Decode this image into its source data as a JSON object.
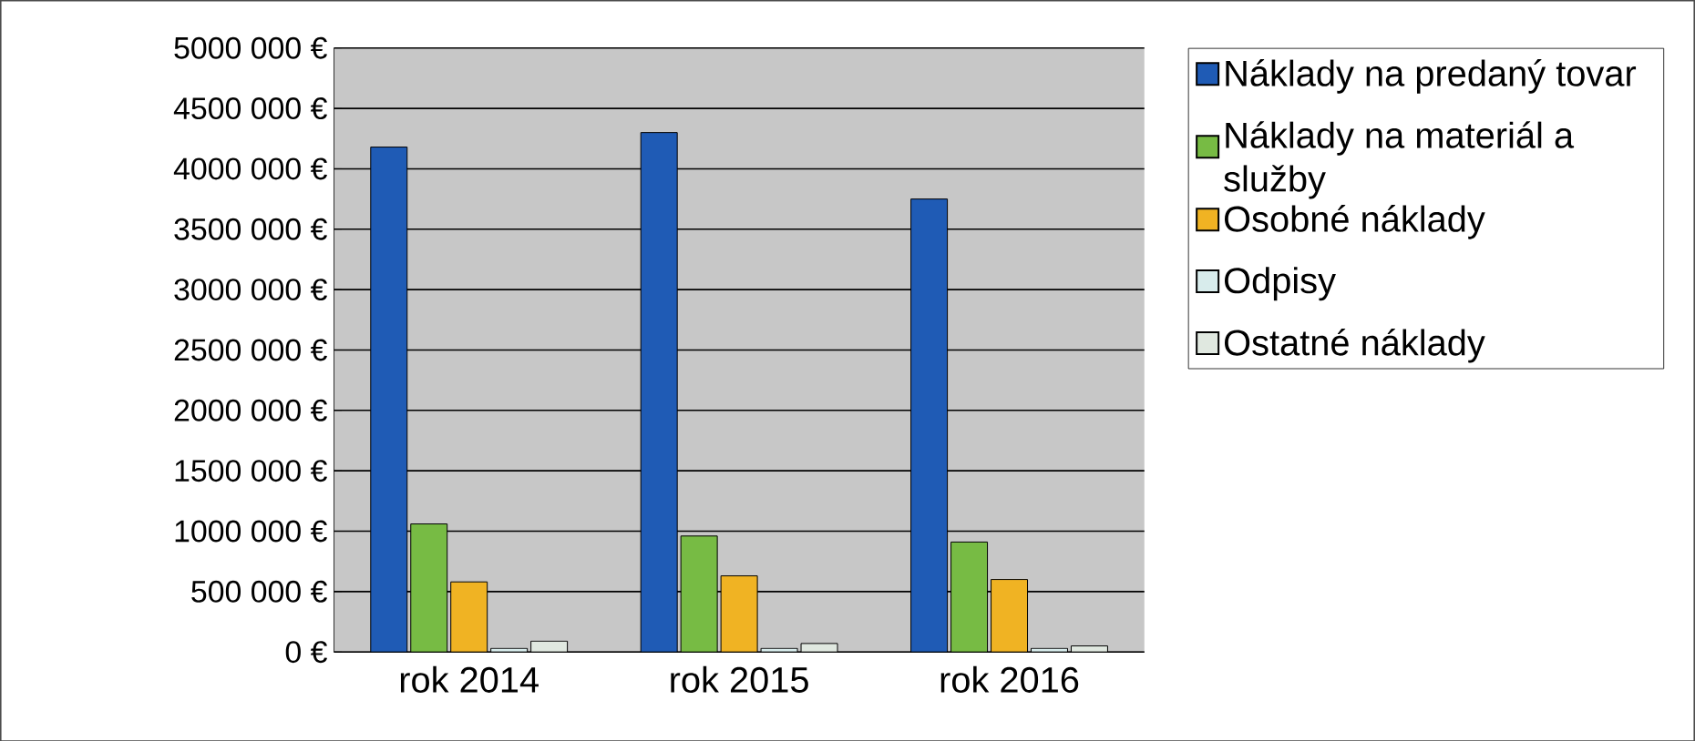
{
  "chart_data": {
    "type": "bar",
    "categories": [
      "rok 2014",
      "rok 2015",
      "rok 2016"
    ],
    "series": [
      {
        "name": "Náklady na predaný tovar",
        "color": "#1f5bb5",
        "values": [
          4180000,
          4300000,
          3750000
        ]
      },
      {
        "name": "Náklady na materiál a služby",
        "color": "#77bb44",
        "values": [
          1060000,
          960000,
          910000
        ]
      },
      {
        "name": "Osobné náklady",
        "color": "#f0b323",
        "values": [
          580000,
          630000,
          600000
        ]
      },
      {
        "name": "Odpisy",
        "color": "#d8ecec",
        "values": [
          30000,
          30000,
          30000
        ]
      },
      {
        "name": "Ostatné náklady",
        "color": "#e0e8e0",
        "values": [
          90000,
          70000,
          50000
        ]
      }
    ],
    "ylim": [
      0,
      5000000
    ],
    "yticks": [
      {
        "value": 0,
        "label": "0 €"
      },
      {
        "value": 500000,
        "label": "500 000 €"
      },
      {
        "value": 1000000,
        "label": "1000 000 €"
      },
      {
        "value": 1500000,
        "label": "1500 000 €"
      },
      {
        "value": 2000000,
        "label": "2000 000 €"
      },
      {
        "value": 2500000,
        "label": "2500 000 €"
      },
      {
        "value": 3000000,
        "label": "3000 000 €"
      },
      {
        "value": 3500000,
        "label": "3500 000 €"
      },
      {
        "value": 4000000,
        "label": "4000 000 €"
      },
      {
        "value": 4500000,
        "label": "4500 000 €"
      },
      {
        "value": 5000000,
        "label": "5000 000 €"
      }
    ],
    "grid": "y",
    "legend": "right"
  }
}
